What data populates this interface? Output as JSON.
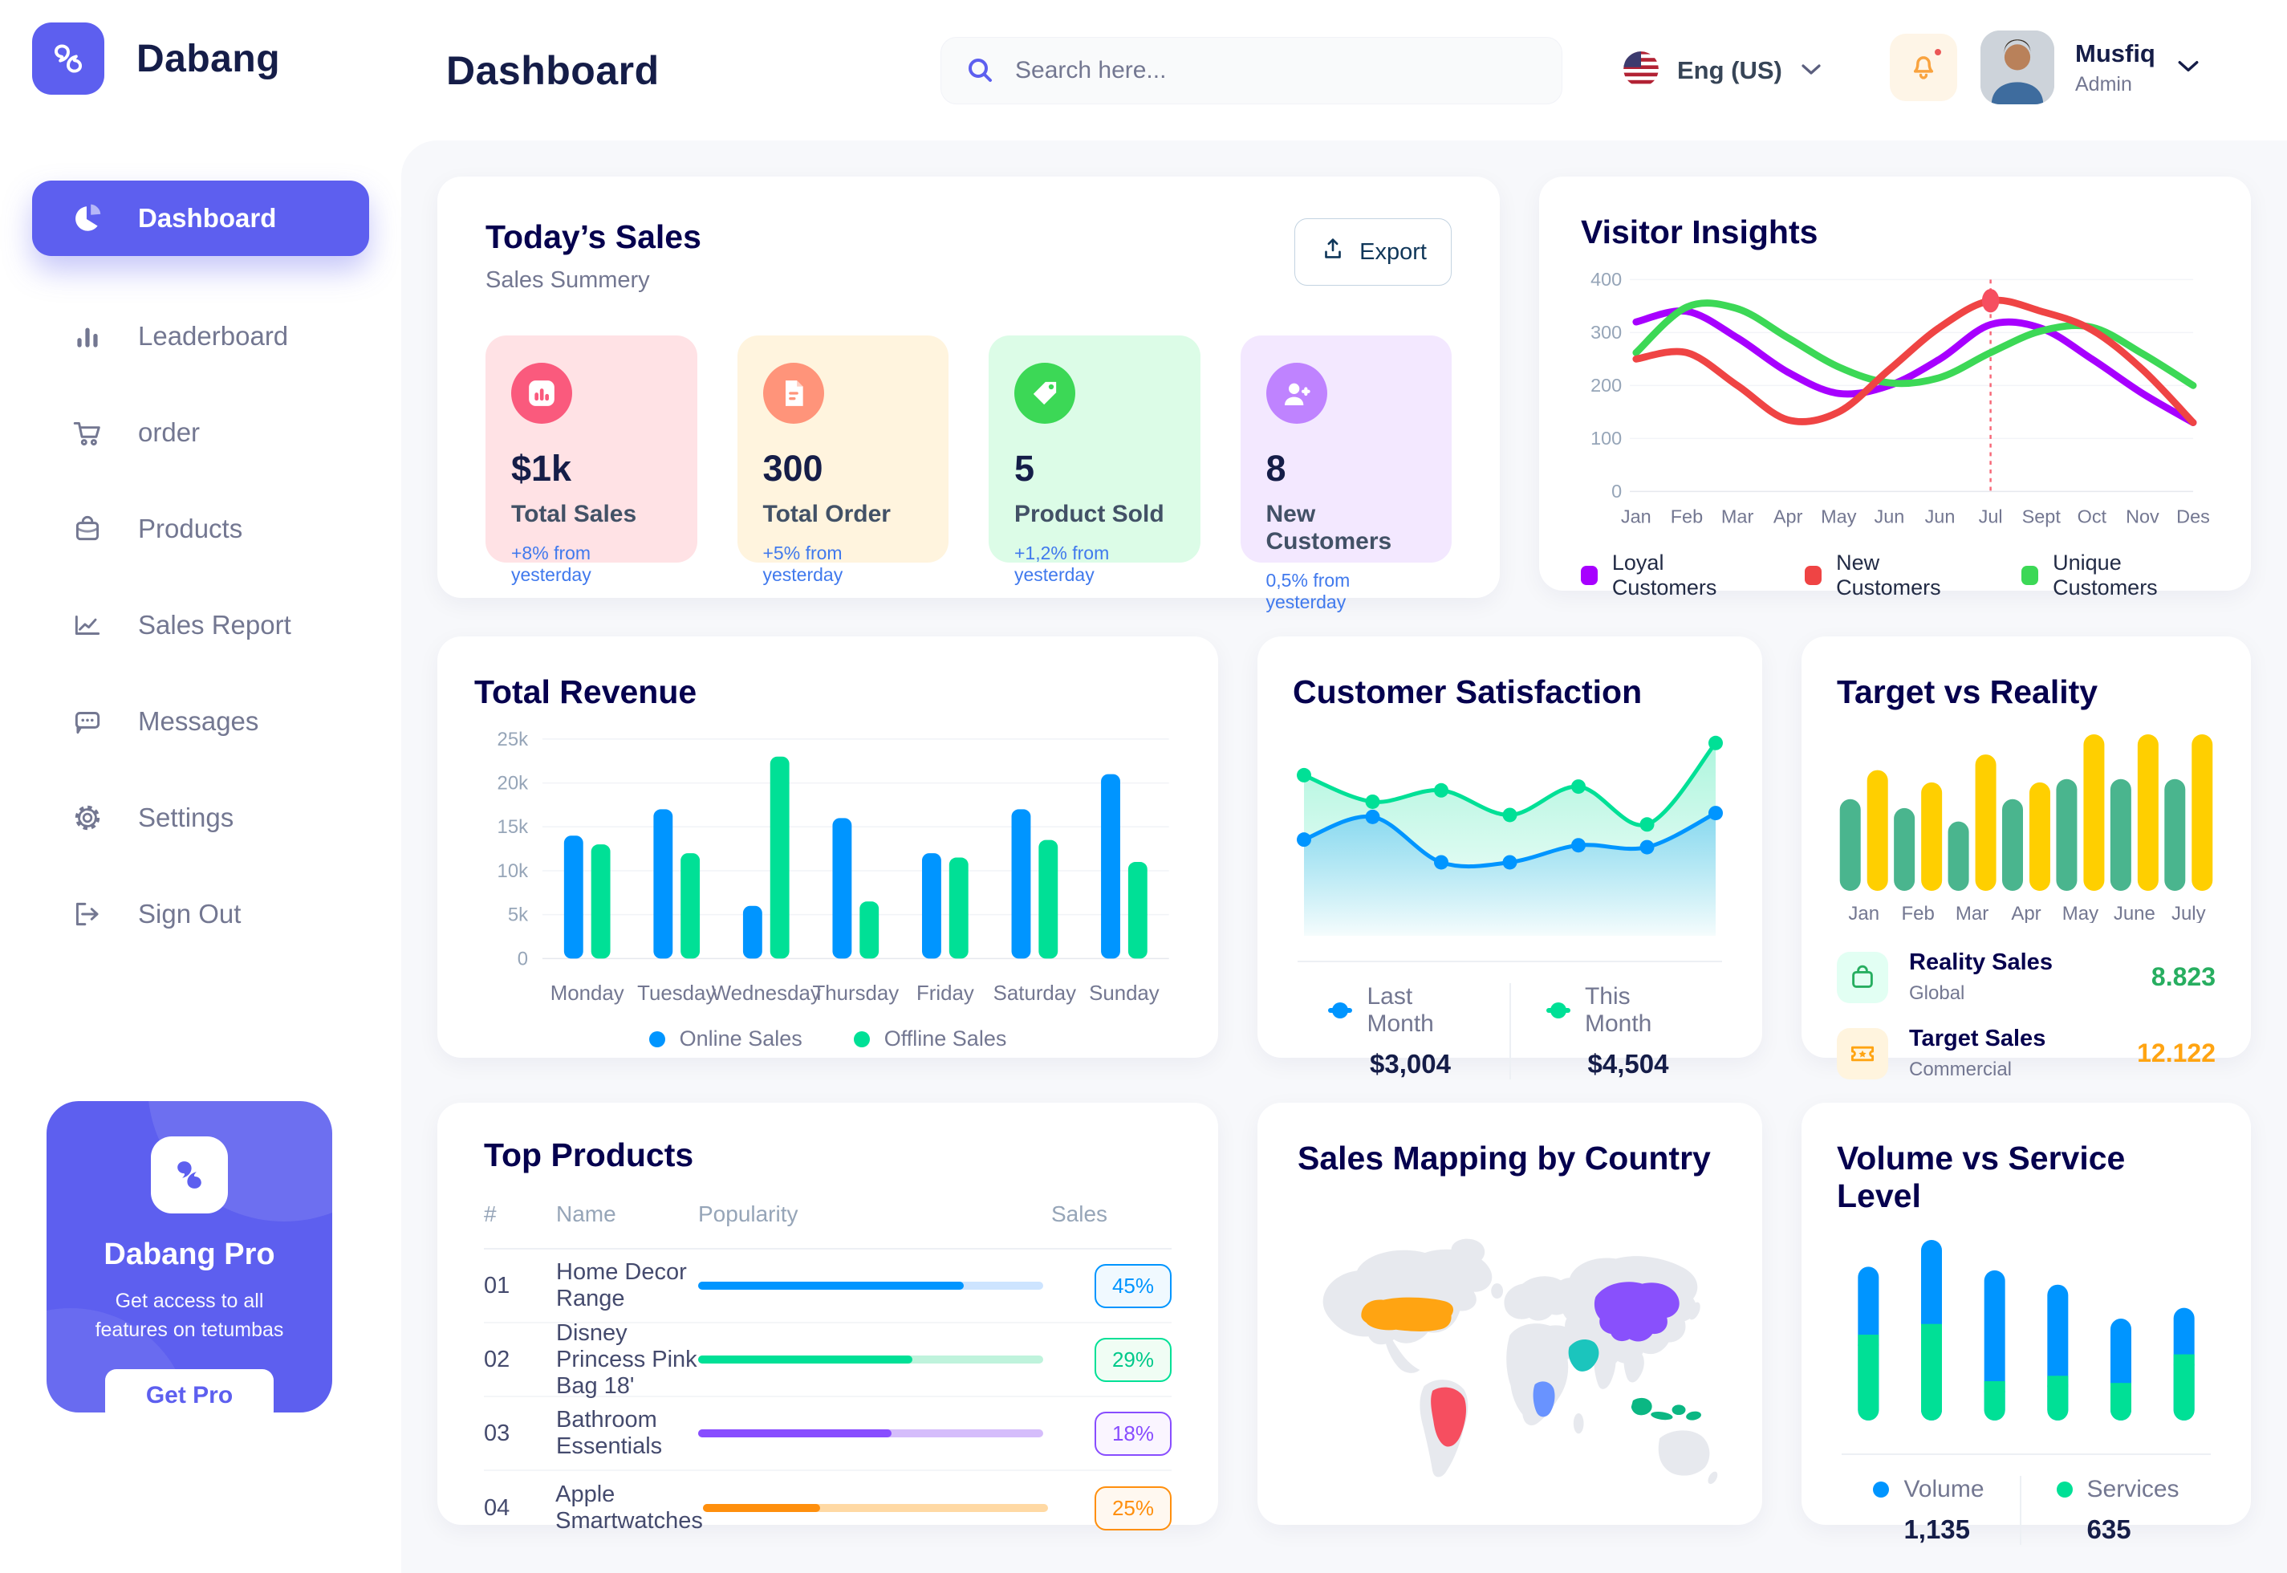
{
  "app": {
    "name": "Dabang",
    "accent_color": "#5D5FEF"
  },
  "header": {
    "title": "Dashboard",
    "search_placeholder": "Search here...",
    "language": "Eng (US)",
    "user": {
      "name": "Musfiq",
      "role": "Admin"
    }
  },
  "sidebar": {
    "items": [
      {
        "label": "Dashboard",
        "active": true
      },
      {
        "label": "Leaderboard"
      },
      {
        "label": "order"
      },
      {
        "label": "Products"
      },
      {
        "label": "Sales Report"
      },
      {
        "label": "Messages"
      },
      {
        "label": "Settings"
      },
      {
        "label": "Sign Out"
      }
    ],
    "pro": {
      "title": "Dabang Pro",
      "subtitle": "Get access to all features on tetumbas",
      "cta": "Get Pro"
    }
  },
  "today_sales": {
    "title": "Today’s Sales",
    "subtitle": "Sales Summery",
    "export_label": "Export",
    "stats": [
      {
        "value": "$1k",
        "label": "Total Sales",
        "delta": "+8% from yesterday",
        "bg": "#FFE2E5",
        "accent": "#FA5A7D"
      },
      {
        "value": "300",
        "label": "Total Order",
        "delta": "+5% from yesterday",
        "bg": "#FFF4DE",
        "accent": "#FF947A"
      },
      {
        "value": "5",
        "label": "Product Sold",
        "delta": "+1,2% from yesterday",
        "bg": "#DCFCE7",
        "accent": "#3CD856"
      },
      {
        "value": "8",
        "label": "New Customers",
        "delta": "0,5% from yesterday",
        "bg": "#F3E8FF",
        "accent": "#BF83FF"
      }
    ]
  },
  "top_products": {
    "title": "Top Products",
    "columns": [
      "#",
      "Name",
      "Popularity",
      "Sales"
    ],
    "rows": [
      {
        "num": "01",
        "name": "Home Decor Range",
        "popularity": 77,
        "sales": "45%",
        "color": "#0095FF"
      },
      {
        "num": "02",
        "name": "Disney Princess Pink Bag 18'",
        "popularity": 62,
        "sales": "29%",
        "color": "#00E096"
      },
      {
        "num": "03",
        "name": "Bathroom Essentials",
        "popularity": 56,
        "sales": "18%",
        "color": "#884DFF"
      },
      {
        "num": "04",
        "name": "Apple Smartwatches",
        "popularity": 34,
        "sales": "25%",
        "color": "#FF8F0D"
      }
    ]
  },
  "target_legend": [
    {
      "name": "Reality Sales",
      "scope": "Global",
      "value": "8.823",
      "color": "#27AE60",
      "tile_bg": "#E2FFF3"
    },
    {
      "name": "Target Sales",
      "scope": "Commercial",
      "value": "12.122",
      "color": "#FFA412",
      "tile_bg": "#FFF4DE"
    }
  ],
  "chart_data": [
    {
      "id": "visitor-insights",
      "type": "line",
      "title": "Visitor Insights",
      "x": [
        "Jan",
        "Feb",
        "Mar",
        "Apr",
        "May",
        "Jun",
        "Jun",
        "Jul",
        "Sept",
        "Oct",
        "Nov",
        "Des"
      ],
      "ylim": [
        0,
        400
      ],
      "yticks": [
        0,
        100,
        200,
        300,
        400
      ],
      "grid": true,
      "legend_position": "bottom",
      "annotation": {
        "x_label": "Jul",
        "x_index": 7,
        "style": "dashed-vertical",
        "color": "#F64E60",
        "dot_value": 360
      },
      "series": [
        {
          "name": "Loyal Customers",
          "color": "#A700FF",
          "values": [
            320,
            340,
            290,
            225,
            185,
            200,
            250,
            315,
            308,
            250,
            185,
            130
          ]
        },
        {
          "name": "New Customers",
          "color": "#EF4444",
          "values": [
            250,
            262,
            200,
            135,
            150,
            230,
            310,
            360,
            340,
            305,
            230,
            130
          ]
        },
        {
          "name": "Unique Customers",
          "color": "#3CD856",
          "values": [
            262,
            348,
            345,
            290,
            235,
            205,
            215,
            262,
            303,
            310,
            260,
            200
          ]
        }
      ]
    },
    {
      "id": "total-revenue",
      "type": "bar",
      "title": "Total Revenue",
      "categories": [
        "Monday",
        "Tuesday",
        "Wednesday",
        "Thursday",
        "Friday",
        "Saturday",
        "Sunday"
      ],
      "ylim": [
        0,
        25000
      ],
      "ytick_labels": [
        "0",
        "5k",
        "10k",
        "15k",
        "20k",
        "25k"
      ],
      "grid": true,
      "legend_position": "bottom",
      "series": [
        {
          "name": "Online Sales",
          "color": "#0095FF",
          "values": [
            14000,
            17000,
            6000,
            16000,
            12000,
            17000,
            21000
          ]
        },
        {
          "name": "Offline Sales",
          "color": "#00E096",
          "values": [
            13000,
            12000,
            23000,
            6500,
            11500,
            13500,
            11000
          ]
        }
      ]
    },
    {
      "id": "customer-satisfaction",
      "type": "area",
      "title": "Customer Satisfaction",
      "ylim": [
        0,
        100
      ],
      "grid": false,
      "legend_position": "bottom",
      "series": [
        {
          "name": "Last Month",
          "color": "#0095FF",
          "total": "$3,004",
          "values": [
            44,
            56,
            32,
            32,
            41,
            40,
            58
          ]
        },
        {
          "name": "This Month",
          "color": "#00E096",
          "total": "$4,504",
          "values": [
            78,
            64,
            70,
            57,
            72,
            52,
            95
          ]
        }
      ]
    },
    {
      "id": "target-vs-reality",
      "type": "bar",
      "title": "Target vs Reality",
      "categories": [
        "Jan",
        "Feb",
        "Mar",
        "Apr",
        "May",
        "June",
        "July"
      ],
      "ylim": [
        0,
        14
      ],
      "grid": false,
      "series": [
        {
          "name": "Reality Sales",
          "color": "#4AB58E",
          "values": [
            8.2,
            7.4,
            6.2,
            8.2,
            10,
            10,
            10
          ]
        },
        {
          "name": "Target Sales",
          "color": "#FFCF00",
          "values": [
            10.8,
            9.7,
            12.2,
            9.7,
            14,
            14,
            14
          ]
        }
      ]
    },
    {
      "id": "sales-mapping",
      "type": "map",
      "title": "Sales Mapping by Country",
      "land_color": "#E7E9EE",
      "countries": [
        {
          "name": "United States",
          "color": "#FFA412"
        },
        {
          "name": "Brazil",
          "color": "#F64E60"
        },
        {
          "name": "DR Congo",
          "color": "#6993FF"
        },
        {
          "name": "Saudi Arabia",
          "color": "#1BC5BD"
        },
        {
          "name": "China",
          "color": "#8950FC"
        },
        {
          "name": "Indonesia",
          "color": "#0BB783"
        }
      ]
    },
    {
      "id": "volume-vs-service",
      "type": "stacked-bar",
      "title": "Volume vs Service Level",
      "grid": false,
      "legend_position": "bottom",
      "series": [
        {
          "name": "Volume",
          "color": "#0095FF",
          "total": "1,135",
          "values": [
            38,
            47,
            62,
            51,
            36,
            26
          ]
        },
        {
          "name": "Services",
          "color": "#00E096",
          "total": "635",
          "values": [
            48,
            54,
            22,
            25,
            21,
            37
          ]
        }
      ]
    }
  ]
}
